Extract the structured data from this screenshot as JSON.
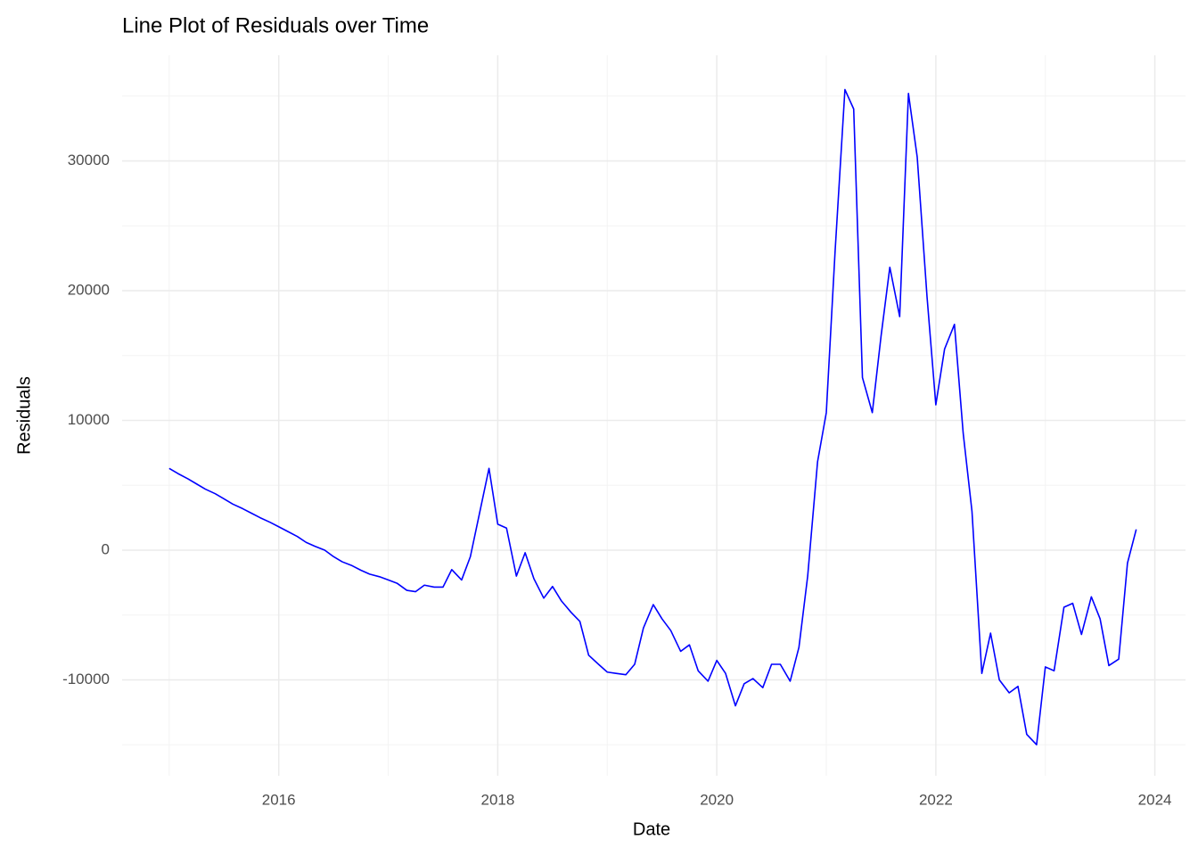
{
  "chart_data": {
    "type": "line",
    "title": "Line Plot of Residuals over Time",
    "x_label": "Date",
    "y_label": "Residuals",
    "x": [
      2015.0,
      2015.08,
      2015.17,
      2015.25,
      2015.33,
      2015.42,
      2015.5,
      2015.58,
      2015.67,
      2015.75,
      2015.83,
      2015.92,
      2016.0,
      2016.08,
      2016.17,
      2016.25,
      2016.33,
      2016.42,
      2016.5,
      2016.58,
      2016.67,
      2016.75,
      2016.83,
      2016.92,
      2017.0,
      2017.08,
      2017.17,
      2017.25,
      2017.33,
      2017.42,
      2017.5,
      2017.58,
      2017.67,
      2017.75,
      2017.83,
      2017.92,
      2018.0,
      2018.08,
      2018.17,
      2018.25,
      2018.33,
      2018.42,
      2018.5,
      2018.58,
      2018.67,
      2018.75,
      2018.83,
      2018.92,
      2019.0,
      2019.08,
      2019.17,
      2019.25,
      2019.33,
      2019.42,
      2019.5,
      2019.58,
      2019.67,
      2019.75,
      2019.83,
      2019.92,
      2020.0,
      2020.08,
      2020.17,
      2020.25,
      2020.33,
      2020.42,
      2020.5,
      2020.58,
      2020.67,
      2020.75,
      2020.83,
      2020.92,
      2021.0,
      2021.08,
      2021.17,
      2021.25,
      2021.33,
      2021.42,
      2021.5,
      2021.58,
      2021.67,
      2021.75,
      2021.83,
      2021.92,
      2022.0,
      2022.08,
      2022.17,
      2022.25,
      2022.33,
      2022.42,
      2022.5,
      2022.58,
      2022.67,
      2022.75,
      2022.83,
      2022.92,
      2023.0,
      2023.08,
      2023.17,
      2023.25,
      2023.33,
      2023.42,
      2023.5,
      2023.58,
      2023.67,
      2023.75,
      2023.83
    ],
    "series": [
      {
        "name": "Residuals",
        "color": "#0000ff",
        "values": [
          6300,
          5900,
          5500,
          5100,
          4700,
          4350,
          3950,
          3550,
          3200,
          2850,
          2500,
          2150,
          1800,
          1450,
          1050,
          600,
          300,
          0,
          -500,
          -900,
          -1200,
          -1550,
          -1850,
          -2050,
          -2300,
          -2550,
          -3100,
          -3200,
          -2700,
          -2850,
          -2850,
          -1500,
          -2300,
          -500,
          2700,
          6300,
          2000,
          1700,
          -2000,
          -200,
          -2200,
          -3700,
          -2800,
          -3900,
          -4800,
          -5500,
          -8100,
          -8800,
          -9400,
          -9500,
          -9600,
          -8800,
          -6000,
          -4200,
          -5300,
          -6200,
          -7800,
          -7300,
          -9300,
          -10100,
          -8500,
          -9500,
          -12000,
          -10300,
          -9900,
          -10600,
          -8800,
          -8800,
          -10100,
          -7500,
          -2000,
          6800,
          10600,
          23000,
          35500,
          34000,
          13300,
          10600,
          16500,
          21800,
          18000,
          35200,
          30300,
          19500,
          11200,
          15500,
          17400,
          9000,
          3000,
          -9500,
          -6400,
          -10000,
          -11000,
          -10500,
          -14200,
          -15000,
          -9000,
          -9300,
          -4400,
          -4100,
          -6500,
          -3600,
          -5300,
          -8900,
          -8400,
          -1000,
          1600
        ]
      }
    ],
    "xlim": [
      2014.57,
      2024.28
    ],
    "xticks": [
      2016,
      2018,
      2020,
      2022,
      2024
    ],
    "x_minor_ticks": [
      2015,
      2017,
      2019,
      2021,
      2023
    ],
    "ylim": [
      -17390,
      38140
    ],
    "yticks": [
      -10000,
      0,
      10000,
      20000,
      30000
    ],
    "y_minor_ticks": [
      -15000,
      -5000,
      5000,
      15000,
      25000,
      35000
    ],
    "grid": true
  }
}
